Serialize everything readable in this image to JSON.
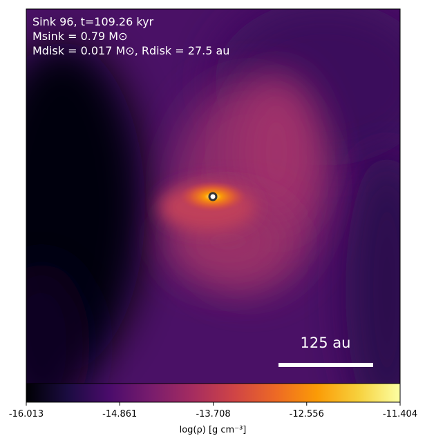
{
  "chart_data": {
    "type": "density-map",
    "annotations": [
      "Sink 96, t=109.26 kyr",
      "Msink = 0.79 M⊙",
      "Mdisk = 0.017 M⊙, Rdisk = 27.5 au"
    ],
    "scale_bar_label": "125 au",
    "colorbar": {
      "label": "log(ρ) [g cm⁻³]",
      "lim": [
        -16.013,
        -11.404
      ],
      "ticks": [
        -16.013,
        -14.861,
        -13.708,
        -12.556,
        -11.404
      ],
      "colors": [
        "#000004",
        "#1b0c41",
        "#4a0c6b",
        "#781c6d",
        "#a52c60",
        "#cf4446",
        "#ed6925",
        "#fb9b06",
        "#f7d13d",
        "#fcffa4"
      ]
    }
  }
}
